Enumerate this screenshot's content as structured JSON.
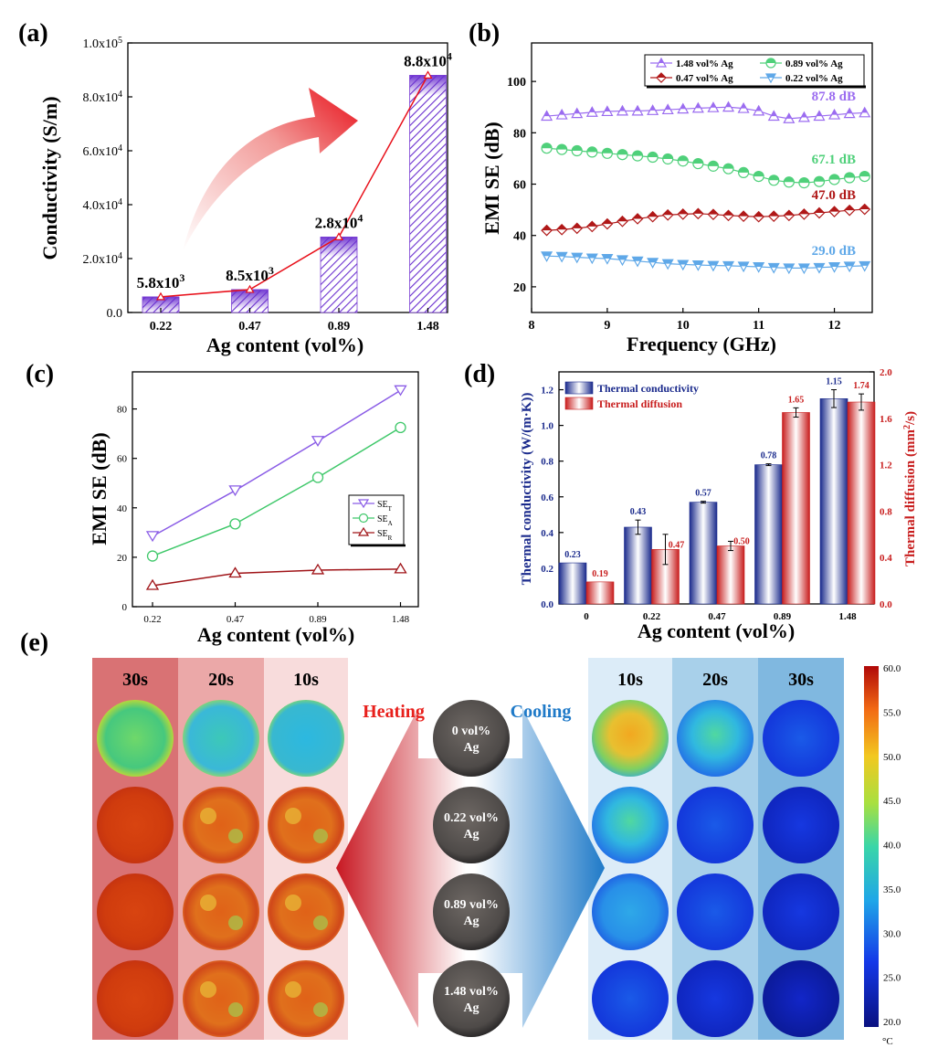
{
  "chart_data": [
    {
      "id": "a",
      "panel_label": "(a)",
      "type": "bar",
      "xlabel": "Ag content (vol%)",
      "ylabel": "Conductivity (S/m)",
      "categories": [
        "0.22",
        "0.47",
        "0.89",
        "1.48"
      ],
      "values": [
        5800,
        8500,
        28000,
        88000
      ],
      "ylim": [
        0,
        100000
      ],
      "y_ticks": [
        "0.0",
        "2.0x10",
        "4.0x10",
        "6.0x10",
        "8.0x10",
        "1.0x10"
      ],
      "y_tick_exponent": "4",
      "y_tick_top_exponent": "5",
      "data_labels": [
        "5.8x10",
        "8.5x10",
        "2.8x10",
        "8.8x10"
      ],
      "data_label_exponents": [
        "3",
        "3",
        "4",
        "4"
      ],
      "overlay": "line",
      "colors": {
        "bar": "#7b3fd4",
        "line": "#e8101a",
        "arrow": "#e8101a"
      }
    },
    {
      "id": "b",
      "panel_label": "(b)",
      "type": "line",
      "xlabel": "Frequency (GHz)",
      "ylabel": "EMI SE (dB)",
      "xlim": [
        8,
        12.5
      ],
      "ylim": [
        10,
        115
      ],
      "x_ticks": [
        "8",
        "9",
        "10",
        "11",
        "12"
      ],
      "y_ticks": [
        "20",
        "40",
        "60",
        "80",
        "100"
      ],
      "x": [
        8.2,
        8.4,
        8.6,
        8.8,
        9.0,
        9.2,
        9.4,
        9.6,
        9.8,
        10.0,
        10.2,
        10.4,
        10.6,
        10.8,
        11.0,
        11.2,
        11.4,
        11.6,
        11.8,
        12.0,
        12.2,
        12.4
      ],
      "legend_position": "top-right",
      "series": [
        {
          "name": "1.48 vol% Ag",
          "color": "#9b6cf0",
          "marker": "triangle-up",
          "label": "87.8 dB",
          "values": [
            86.5,
            87,
            87.5,
            88,
            88.3,
            88.5,
            88.5,
            88.7,
            89,
            89.3,
            89.6,
            89.8,
            90,
            89.5,
            88.5,
            86.5,
            85.5,
            86,
            86.5,
            87,
            87.5,
            87.8
          ]
        },
        {
          "name": "0.89 vol% Ag",
          "color": "#4fd07a",
          "marker": "circle",
          "label": "67.1 dB",
          "values": [
            74,
            73.5,
            73,
            72.5,
            72,
            71.5,
            71,
            70.5,
            69.8,
            69,
            68,
            67,
            66,
            64.5,
            63,
            61.5,
            60.8,
            60.5,
            61,
            61.8,
            62.5,
            63
          ]
        },
        {
          "name": "0.47 vol% Ag",
          "color": "#b01818",
          "marker": "diamond",
          "label": "47.0 dB",
          "values": [
            42,
            42.3,
            42.8,
            43.5,
            44.5,
            45.5,
            46.5,
            47.3,
            48,
            48.3,
            48.5,
            48.2,
            47.8,
            47.5,
            47.3,
            47.5,
            47.8,
            48.3,
            48.8,
            49.3,
            49.8,
            50.2
          ]
        },
        {
          "name": "0.22 vol% Ag",
          "color": "#5fa8e8",
          "marker": "triangle-down",
          "label": "29.0 dB",
          "values": [
            32,
            31.8,
            31.5,
            31.2,
            31,
            30.5,
            30,
            29.5,
            29,
            28.7,
            28.5,
            28.3,
            28.2,
            28,
            27.8,
            27.5,
            27.3,
            27.3,
            27.5,
            27.8,
            28,
            28.2
          ]
        }
      ]
    },
    {
      "id": "c",
      "panel_label": "(c)",
      "type": "line",
      "xlabel": "Ag content (vol%)",
      "ylabel": "EMI SE (dB)",
      "categories": [
        "0.22",
        "0.47",
        "0.89",
        "1.48"
      ],
      "ylim": [
        0,
        95
      ],
      "y_ticks": [
        "0",
        "20",
        "40",
        "60",
        "80"
      ],
      "legend_position": "center-right",
      "series": [
        {
          "name": "SE",
          "subscript": "T",
          "color": "#8a5ce6",
          "marker": "triangle-down",
          "values": [
            28.5,
            47,
            67,
            87.5
          ]
        },
        {
          "name": "SE",
          "subscript": "A",
          "color": "#3fc86a",
          "marker": "circle",
          "values": [
            20.5,
            33.5,
            52.3,
            72.5
          ]
        },
        {
          "name": "SE",
          "subscript": "R",
          "color": "#a01418",
          "marker": "triangle-up",
          "values": [
            8.5,
            13.5,
            14.8,
            15.2
          ]
        }
      ]
    },
    {
      "id": "d",
      "panel_label": "(d)",
      "type": "bar",
      "xlabel": "Ag content (vol%)",
      "ylabel_left": "Thermal conductivity (W/(m·K))",
      "ylabel_right": "Thermal diffusion (mm",
      "ylabel_right_sup": "2",
      "ylabel_right_tail": "/s)",
      "categories": [
        "0",
        "0.22",
        "0.47",
        "0.89",
        "1.48"
      ],
      "ylim_left": [
        0,
        1.3
      ],
      "ylim_right": [
        0,
        2.0
      ],
      "y_ticks_left": [
        "0.0",
        "0.2",
        "0.4",
        "0.6",
        "0.8",
        "1.0",
        "1.2"
      ],
      "y_ticks_right": [
        "0.0",
        "0.4",
        "0.8",
        "1.2",
        "1.6",
        "2.0"
      ],
      "legend_position": "top-left",
      "series": [
        {
          "name": "Thermal conductivity",
          "color": "#1a2a8c",
          "axis": "left",
          "values": [
            0.23,
            0.43,
            0.57,
            0.78,
            1.15
          ],
          "labels": [
            "0.23",
            "0.43",
            "0.57",
            "0.78",
            "1.15"
          ],
          "errors": [
            0.0,
            0.04,
            0.005,
            0.005,
            0.05
          ]
        },
        {
          "name": "Thermal diffusion",
          "color": "#c81e1e",
          "axis": "right",
          "values": [
            0.19,
            0.47,
            0.5,
            1.65,
            1.74
          ],
          "labels": [
            "0.19",
            "0.47",
            "0.50",
            "1.65",
            "1.74"
          ],
          "errors": [
            0.0,
            0.13,
            0.04,
            0.04,
            0.07
          ]
        }
      ]
    }
  ],
  "panel_e": {
    "panel_label": "(e)",
    "heating_label": "Heating",
    "cooling_label": "Cooling",
    "heating_times": [
      "30s",
      "20s",
      "10s"
    ],
    "cooling_times": [
      "10s",
      "20s",
      "30s"
    ],
    "sample_labels": [
      [
        "0 vol%",
        "Ag"
      ],
      [
        "0.22 vol%",
        "Ag"
      ],
      [
        "0.89 vol%",
        "Ag"
      ],
      [
        "1.48 vol%",
        "Ag"
      ]
    ],
    "colorbar_ticks": [
      "60.0",
      "55.0",
      "50.0",
      "45.0",
      "40.0",
      "35.0",
      "30.0",
      "25.0",
      "20.0"
    ],
    "colorbar_unit": "°C",
    "colors": {
      "heating": "#e8201c",
      "cooling": "#1f7ac8"
    }
  }
}
